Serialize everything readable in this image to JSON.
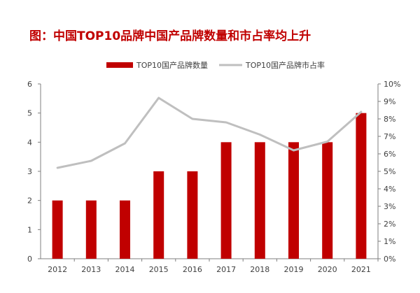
{
  "title": "图：中国TOP10品牌中国产品牌数量和市占率均上升",
  "chart_data": {
    "type": "bar",
    "categories": [
      "2012",
      "2013",
      "2014",
      "2015",
      "2016",
      "2017",
      "2018",
      "2019",
      "2020",
      "2021"
    ],
    "series": [
      {
        "name": "TOP10国产品牌数量",
        "type": "bar",
        "axis": "left",
        "color": "#c00000",
        "values": [
          2,
          2,
          2,
          3,
          3,
          4,
          4,
          4,
          4,
          5
        ]
      },
      {
        "name": "TOP10国产品牌市占率",
        "type": "line",
        "axis": "right",
        "color": "#bfbfbf",
        "values": [
          5.2,
          5.6,
          6.6,
          9.2,
          8.0,
          7.8,
          7.1,
          6.2,
          6.7,
          8.4
        ]
      }
    ],
    "left_axis": {
      "min": 0,
      "max": 6,
      "ticks": [
        "0",
        "1",
        "2",
        "3",
        "4",
        "5",
        "6"
      ]
    },
    "right_axis": {
      "min": 0,
      "max": 10,
      "ticks": [
        "0%",
        "1%",
        "2%",
        "3%",
        "4%",
        "5%",
        "6%",
        "7%",
        "8%",
        "9%",
        "10%"
      ]
    },
    "grid": false,
    "legend_position": "top"
  }
}
